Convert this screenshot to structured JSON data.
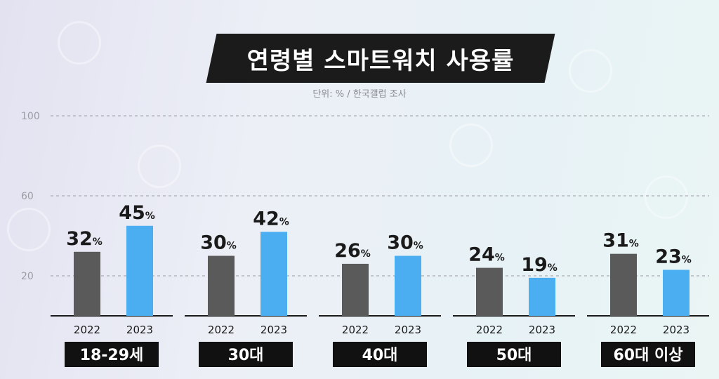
{
  "chart_data": {
    "type": "bar",
    "title": "연령별 스마트워치 사용률",
    "subtitle": "단위: % / 한국갤럽 조사",
    "yticks": [
      20,
      60,
      100
    ],
    "ylim": [
      0,
      100
    ],
    "value_suffix": "%",
    "groups": [
      "18-29세",
      "30대",
      "40대",
      "50대",
      "60대 이상"
    ],
    "series": [
      {
        "name": "2022",
        "color": "#5a5a5a",
        "values": [
          32,
          30,
          26,
          24,
          31
        ]
      },
      {
        "name": "2023",
        "color": "#4aaef0",
        "values": [
          45,
          42,
          30,
          19,
          23
        ]
      }
    ],
    "grid": true
  }
}
